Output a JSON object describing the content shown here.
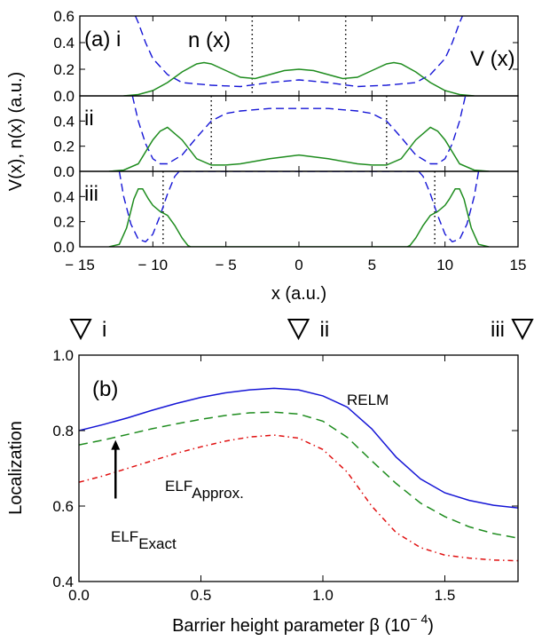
{
  "colors": {
    "n": "#1e8c1e",
    "V": "#1515d6",
    "relm": "#1515d6",
    "elf_approx": "#1e8c1e",
    "elf_exact": "#e01010",
    "arrow": "#000000"
  },
  "chart_data": [
    {
      "type": "line",
      "panel": "top",
      "xlabel": "x (a.u.)",
      "ylabel": "V(x), n(x) (a.u.)",
      "xlim": [
        -15,
        15
      ],
      "xticks": [
        -15,
        -10,
        -5,
        0,
        5,
        10,
        15
      ],
      "xtick_labels": [
        "− 15",
        "− 10",
        "− 5",
        "0",
        "5",
        "10",
        "15"
      ],
      "subplots": [
        {
          "tag": "(a) i",
          "ylim": [
            0,
            0.6
          ],
          "yticks": [
            0.0,
            0.2,
            0.4,
            0.6
          ],
          "ytick_labels": [
            "0.0",
            "0.2",
            "0.4",
            "0.6"
          ],
          "series_labels": {
            "n": "n (x)",
            "V": "V (x)"
          },
          "vlines": [
            -3.2,
            3.2
          ],
          "n": {
            "x": [
              -12,
              -11,
              -10,
              -9,
              -8,
              -7,
              -6.5,
              -6,
              -5,
              -4,
              -3,
              -2,
              -1,
              0,
              1,
              2,
              3,
              4,
              5,
              6,
              6.5,
              7,
              8,
              9,
              10,
              11,
              12
            ],
            "y": [
              0,
              0.01,
              0.04,
              0.1,
              0.18,
              0.24,
              0.25,
              0.24,
              0.19,
              0.14,
              0.13,
              0.16,
              0.19,
              0.2,
              0.19,
              0.16,
              0.13,
              0.14,
              0.19,
              0.24,
              0.25,
              0.24,
              0.18,
              0.1,
              0.04,
              0.01,
              0
            ]
          },
          "V": {
            "x": [
              -11.2,
              -11,
              -10.5,
              -10,
              -9,
              -8,
              -6,
              -4,
              -3,
              -2,
              0,
              2,
              3,
              4,
              6,
              8,
              9,
              10,
              10.5,
              11,
              11.2
            ],
            "y": [
              0.6,
              0.55,
              0.4,
              0.28,
              0.16,
              0.1,
              0.08,
              0.07,
              0.085,
              0.1,
              0.12,
              0.1,
              0.085,
              0.07,
              0.08,
              0.1,
              0.16,
              0.28,
              0.4,
              0.55,
              0.6
            ]
          }
        },
        {
          "tag": "ii",
          "ylim": [
            0,
            0.6
          ],
          "yticks": [
            0.0,
            0.2,
            0.4
          ],
          "ytick_labels": [
            "0.0",
            "0.2",
            "0.4"
          ],
          "vlines": [
            -6,
            6
          ],
          "n": {
            "x": [
              -13,
              -12,
              -11,
              -10,
              -9.5,
              -9,
              -8,
              -7,
              -6,
              -5,
              -4,
              -2,
              0,
              2,
              4,
              5,
              6,
              7,
              8,
              9,
              9.5,
              10,
              11,
              12,
              13
            ],
            "y": [
              0,
              0.01,
              0.06,
              0.25,
              0.32,
              0.35,
              0.25,
              0.1,
              0.05,
              0.05,
              0.06,
              0.1,
              0.13,
              0.1,
              0.06,
              0.05,
              0.05,
              0.1,
              0.25,
              0.35,
              0.32,
              0.25,
              0.06,
              0.01,
              0
            ]
          },
          "V": {
            "x": [
              -11.4,
              -11,
              -10.5,
              -10,
              -9.5,
              -9,
              -8,
              -7,
              -6,
              -5,
              -4,
              -2,
              0,
              2,
              4,
              5,
              6,
              7,
              8,
              9,
              9.5,
              10,
              10.5,
              11,
              11.4
            ],
            "y": [
              0.6,
              0.4,
              0.22,
              0.1,
              0.06,
              0.06,
              0.13,
              0.27,
              0.4,
              0.46,
              0.48,
              0.5,
              0.5,
              0.5,
              0.48,
              0.46,
              0.4,
              0.27,
              0.13,
              0.06,
              0.06,
              0.1,
              0.22,
              0.4,
              0.6
            ]
          }
        },
        {
          "tag": "iii",
          "ylim": [
            0,
            0.6
          ],
          "yticks": [
            0.0,
            0.2,
            0.4
          ],
          "ytick_labels": [
            "0.0",
            "0.2",
            "0.4"
          ],
          "vlines": [
            -9.3,
            9.3
          ],
          "n": {
            "x": [
              -13,
              -12.3,
              -11.8,
              -11.3,
              -11,
              -10.7,
              -10.3,
              -10,
              -9.5,
              -9,
              -8.5,
              -8,
              -7.6,
              -7.4,
              7.4,
              7.6,
              8,
              8.5,
              9,
              9.5,
              10,
              10.3,
              10.7,
              11,
              11.3,
              11.8,
              12.3,
              13
            ],
            "y": [
              0,
              0.02,
              0.15,
              0.38,
              0.46,
              0.46,
              0.38,
              0.33,
              0.28,
              0.25,
              0.17,
              0.07,
              0.01,
              0,
              0,
              0.01,
              0.07,
              0.17,
              0.25,
              0.28,
              0.33,
              0.38,
              0.46,
              0.46,
              0.38,
              0.15,
              0.02,
              0
            ]
          },
          "V": {
            "x": [
              -12.3,
              -12,
              -11.5,
              -11,
              -10.5,
              -10,
              -9.5,
              -9,
              -8.5,
              -8.2,
              8.2,
              8.5,
              9,
              9.5,
              10,
              10.5,
              11,
              11.5,
              12,
              12.3
            ],
            "y": [
              0.6,
              0.4,
              0.18,
              0.06,
              0.04,
              0.1,
              0.25,
              0.42,
              0.56,
              0.6,
              0.6,
              0.56,
              0.42,
              0.25,
              0.1,
              0.04,
              0.06,
              0.18,
              0.4,
              0.6
            ]
          }
        }
      ]
    },
    {
      "type": "line",
      "panel": "bottom",
      "tag": "(b)",
      "xlabel": "Barrier height parameter β (10⁻⁴)",
      "xlabel_main": "Barrier height parameter β (10",
      "xlabel_sup": "− 4",
      "xlabel_close": ")",
      "ylabel": "Localization",
      "xlim": [
        0,
        1.8
      ],
      "ylim": [
        0.4,
        1.0
      ],
      "xticks": [
        0,
        0.5,
        1.0,
        1.5
      ],
      "xtick_labels": [
        "0.0",
        "0.5",
        "1.0",
        "1.5"
      ],
      "yticks": [
        0.4,
        0.6,
        0.8,
        1.0
      ],
      "ytick_labels": [
        "0.4",
        "0.6",
        "0.8",
        "1.0"
      ],
      "markers": [
        {
          "x": 0.0,
          "label": "i"
        },
        {
          "x": 0.9,
          "label": "ii"
        },
        {
          "x": 1.8,
          "label": "iii"
        }
      ],
      "labels": {
        "relm": "RELM",
        "approx_main": "ELF",
        "approx_sub": "Approx.",
        "exact_main": "ELF",
        "exact_sub": "Exact"
      },
      "series": [
        {
          "name": "RELM",
          "style": "solid",
          "x": [
            0,
            0.1,
            0.2,
            0.3,
            0.4,
            0.5,
            0.6,
            0.7,
            0.8,
            0.9,
            1.0,
            1.1,
            1.2,
            1.3,
            1.4,
            1.5,
            1.6,
            1.7,
            1.8
          ],
          "y": [
            0.8,
            0.816,
            0.834,
            0.854,
            0.872,
            0.888,
            0.9,
            0.908,
            0.912,
            0.908,
            0.892,
            0.862,
            0.805,
            0.73,
            0.672,
            0.635,
            0.615,
            0.602,
            0.595
          ]
        },
        {
          "name": "ELF Approx.",
          "style": "dashed",
          "x": [
            0,
            0.1,
            0.2,
            0.3,
            0.4,
            0.5,
            0.6,
            0.7,
            0.8,
            0.9,
            1.0,
            1.1,
            1.2,
            1.3,
            1.4,
            1.5,
            1.6,
            1.7,
            1.8
          ],
          "y": [
            0.762,
            0.775,
            0.79,
            0.805,
            0.818,
            0.83,
            0.84,
            0.847,
            0.849,
            0.844,
            0.825,
            0.782,
            0.72,
            0.66,
            0.608,
            0.572,
            0.545,
            0.527,
            0.515
          ]
        },
        {
          "name": "ELF Exact",
          "style": "dashdot",
          "x": [
            0,
            0.1,
            0.2,
            0.3,
            0.4,
            0.5,
            0.6,
            0.7,
            0.8,
            0.9,
            1.0,
            1.1,
            1.2,
            1.3,
            1.4,
            1.5,
            1.6,
            1.7,
            1.8
          ],
          "y": [
            0.663,
            0.68,
            0.7,
            0.72,
            0.74,
            0.757,
            0.772,
            0.783,
            0.788,
            0.78,
            0.75,
            0.69,
            0.6,
            0.53,
            0.49,
            0.47,
            0.462,
            0.457,
            0.455
          ]
        }
      ],
      "arrow": {
        "x": 0.15,
        "from": 0.62,
        "to": 0.775
      }
    }
  ]
}
